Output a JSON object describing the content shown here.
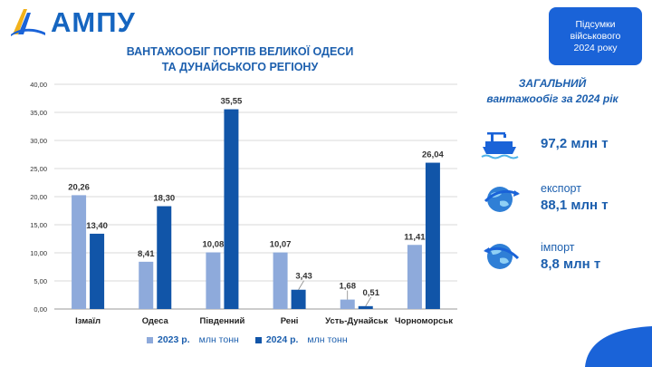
{
  "header": {
    "logo_text": "АМПУ",
    "badge_text": "Підсумки\nвійськового\n2024 року"
  },
  "chart_data": {
    "type": "bar",
    "title": "ВАНТАЖООБІГ ПОРТІВ ВЕЛИКОЇ ОДЕСИ\nТА ДУНАЙСЬКОГО РЕГІОНУ",
    "categories": [
      "Ізмаїл",
      "Одеса",
      "Південний",
      "Рені",
      "Усть-Дунайськ",
      "Чорноморськ"
    ],
    "series": [
      {
        "name": "2023 р.",
        "unit": "млн тонн",
        "color": "#8eaadb",
        "values": [
          20.26,
          8.41,
          10.08,
          10.07,
          1.68,
          11.41
        ],
        "labels": [
          "20,26",
          "8,41",
          "10,08",
          "10,07",
          "1,68",
          "11,41"
        ]
      },
      {
        "name": "2024 р.",
        "unit": "млн тонн",
        "color": "#1155a8",
        "values": [
          13.4,
          18.3,
          35.55,
          3.43,
          0.51,
          26.04
        ],
        "labels": [
          "13,40",
          "18,30",
          "35,55",
          "3,43",
          "0,51",
          "26,04"
        ]
      }
    ],
    "ylim": [
      0,
      40
    ],
    "yticks": [
      "0,00",
      "5,00",
      "10,00",
      "15,00",
      "20,00",
      "25,00",
      "30,00",
      "35,00",
      "40,00"
    ],
    "grid": true,
    "legend": "bottom"
  },
  "summary": {
    "title": "ЗАГАЛЬНИЙ\nвантажообіг за 2024 рік",
    "total": {
      "icon": "cargo-ship-icon",
      "value": "97,2 млн т"
    },
    "export": {
      "icon": "globe-icon",
      "label": "експорт",
      "value": "88,1 млн т"
    },
    "import": {
      "icon": "globe-icon",
      "label": "імпорт",
      "value": "8,8 млн т"
    }
  }
}
